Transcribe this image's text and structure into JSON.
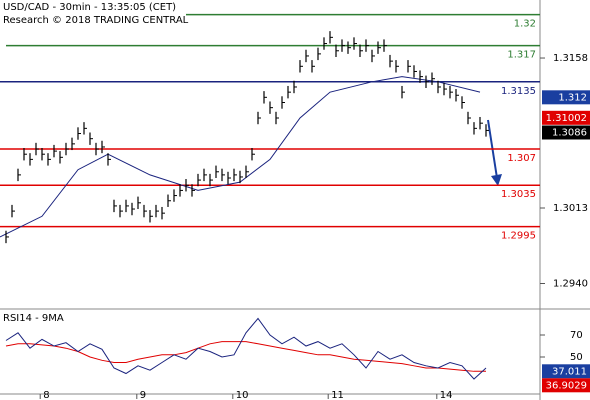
{
  "chart_data": {
    "type": "bar_price",
    "title": "USD/CAD - 30min - 13:35:05 (CET)",
    "subtitle": "Research © 2018 TRADING CENTRAL",
    "xlim": [
      0,
      90
    ],
    "xticks": [
      {
        "value": 6.7,
        "label": "8"
      },
      {
        "value": 22.8,
        "label": "9"
      },
      {
        "value": 38.8,
        "label": "10"
      },
      {
        "value": 54.7,
        "label": "11"
      },
      {
        "value": 72.8,
        "label": "14"
      }
    ],
    "ylim": [
      1.29192,
      1.32141
    ],
    "yticks": [
      1.3158,
      1.3013,
      {
        "value": 1.294,
        "label": "1.2940"
      }
    ],
    "price": {
      "color": "#000000",
      "x": [
        1,
        2,
        3,
        4,
        5,
        6,
        7,
        8,
        9,
        10,
        11,
        12,
        13,
        14,
        15,
        16,
        17,
        18,
        19,
        20,
        21,
        22,
        23,
        24,
        25,
        26,
        27,
        28,
        29,
        30,
        31,
        32,
        33,
        34,
        35,
        36,
        37,
        38,
        39,
        40,
        41,
        42,
        43,
        44,
        45,
        46,
        47,
        48,
        49,
        50,
        51,
        52,
        53,
        54,
        55,
        56,
        57,
        58,
        59,
        60,
        61,
        62,
        63,
        64,
        65,
        66,
        67,
        68,
        69,
        70,
        71,
        72,
        73,
        74,
        75,
        76,
        77,
        78,
        79,
        80,
        81
      ],
      "values": [
        1.2985,
        1.301,
        1.3045,
        1.3065,
        1.306,
        1.307,
        1.3065,
        1.306,
        1.3068,
        1.3062,
        1.307,
        1.3075,
        1.3085,
        1.309,
        1.308,
        1.307,
        1.3072,
        1.306,
        1.3015,
        1.301,
        1.3015,
        1.3012,
        1.3018,
        1.301,
        1.3005,
        1.301,
        1.3008,
        1.302,
        1.3025,
        1.303,
        1.3035,
        1.303,
        1.304,
        1.3045,
        1.304,
        1.3048,
        1.3045,
        1.3042,
        1.3045,
        1.3043,
        1.3048,
        1.3065,
        1.31,
        1.312,
        1.311,
        1.31,
        1.3115,
        1.3125,
        1.313,
        1.315,
        1.316,
        1.315,
        1.3162,
        1.3172,
        1.3178,
        1.3165,
        1.317,
        1.3168,
        1.3172,
        1.3165,
        1.317,
        1.316,
        1.3168,
        1.317,
        1.3155,
        1.315,
        1.3125,
        1.315,
        1.3145,
        1.314,
        1.3135,
        1.3138,
        1.313,
        1.3128,
        1.3125,
        1.3122,
        1.3115,
        1.31,
        1.309,
        1.3095,
        1.3088
      ]
    },
    "moving_average": {
      "color": "#1a237e",
      "x": [
        0,
        7,
        13,
        18,
        25,
        33,
        40,
        45,
        50,
        55,
        62,
        67,
        73,
        80
      ],
      "values": [
        1.2985,
        1.3005,
        1.305,
        1.3065,
        1.3045,
        1.303,
        1.3038,
        1.306,
        1.31,
        1.3125,
        1.3135,
        1.314,
        1.3135,
        1.3125
      ]
    },
    "levels": [
      {
        "value": 1.32,
        "label": "1.32",
        "color": "#2e7d32",
        "from": 31
      },
      {
        "value": 1.317,
        "label": "1.317",
        "color": "#2e7d32",
        "from": 1
      },
      {
        "value": 1.3135,
        "label": "1.3135",
        "color": "#1a237e",
        "from": 0
      },
      {
        "value": 1.307,
        "label": "1.307",
        "color": "#e00000",
        "from": 0
      },
      {
        "value": 1.3035,
        "label": "1.3035",
        "color": "#e00000",
        "from": 0
      },
      {
        "value": 1.2995,
        "label": "1.2995",
        "color": "#e00000",
        "from": 0
      }
    ],
    "markers": [
      {
        "value": 1.312,
        "label": "1.312",
        "color": "#1a3fa0"
      },
      {
        "value": 1.31002,
        "label": "1.31002",
        "color": "#e00000"
      },
      {
        "value": 1.3086,
        "label": "1.3086",
        "color": "#000000"
      }
    ],
    "rsi": {
      "title": "RSI14 - 9MA",
      "ylim": [
        18.2,
        90.9
      ],
      "yticks": [
        70,
        50
      ],
      "x": [
        1,
        3,
        5,
        7,
        9,
        11,
        13,
        15,
        17,
        19,
        21,
        23,
        25,
        27,
        29,
        31,
        33,
        35,
        37,
        39,
        41,
        43,
        45,
        47,
        49,
        51,
        53,
        55,
        57,
        59,
        61,
        63,
        65,
        67,
        69,
        71,
        73,
        75,
        77,
        79,
        81
      ],
      "rsi_color": "#1a237e",
      "rsi_values": [
        65,
        72,
        58,
        66,
        60,
        63,
        55,
        62,
        57,
        40,
        35,
        42,
        38,
        45,
        52,
        48,
        58,
        55,
        50,
        52,
        72,
        85,
        70,
        62,
        68,
        60,
        64,
        58,
        62,
        52,
        40,
        55,
        48,
        52,
        45,
        42,
        40,
        45,
        42,
        30,
        40
      ],
      "ma_color": "#e00000",
      "ma_values": [
        60,
        62,
        62,
        61,
        60,
        58,
        55,
        50,
        47,
        45,
        45,
        48,
        50,
        52,
        52,
        54,
        58,
        62,
        64,
        64,
        64,
        62,
        60,
        58,
        56,
        54,
        52,
        52,
        50,
        48,
        47,
        46,
        45,
        44,
        42,
        40,
        40,
        39,
        38,
        37,
        37
      ],
      "markers": [
        {
          "value": 37.011,
          "label": "37.011",
          "color": "#1a3fa0"
        },
        {
          "value": 36.9029,
          "label": "36.9029",
          "color": "#e00000"
        }
      ]
    }
  }
}
